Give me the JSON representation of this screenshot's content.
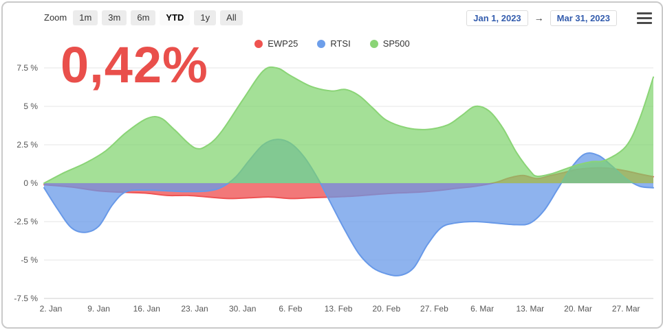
{
  "toolbar": {
    "zoom_label": "Zoom",
    "buttons": [
      {
        "label": "1m",
        "selected": false
      },
      {
        "label": "3m",
        "selected": false
      },
      {
        "label": "6m",
        "selected": false
      },
      {
        "label": "YTD",
        "selected": true
      },
      {
        "label": "1y",
        "selected": false
      },
      {
        "label": "All",
        "selected": false
      }
    ],
    "range_start": "Jan 1, 2023",
    "range_end": "Mar 31, 2023",
    "arrow": "→",
    "date_color": "#335cad"
  },
  "big_value": {
    "text": "0,42%",
    "color": "#e94f4b"
  },
  "chart_data": {
    "type": "area",
    "title": "",
    "threshold": 0,
    "grid": "horizontal",
    "legend_position": "top-center",
    "ylim": [
      -7.5,
      7.5
    ],
    "x_range_days": [
      0,
      89
    ],
    "x_unit": "days since Jan 1, 2023",
    "y_ticks": [
      {
        "value": 7.5,
        "label": "7.5 %"
      },
      {
        "value": 5,
        "label": "5 %"
      },
      {
        "value": 2.5,
        "label": "2.5 %"
      },
      {
        "value": 0,
        "label": "0 %"
      },
      {
        "value": -2.5,
        "label": "-2.5 %"
      },
      {
        "value": -5,
        "label": "-5 %"
      },
      {
        "value": -7.5,
        "label": "-7.5 %"
      }
    ],
    "x_ticks": [
      {
        "day": 1,
        "label": "2. Jan"
      },
      {
        "day": 8,
        "label": "9. Jan"
      },
      {
        "day": 15,
        "label": "16. Jan"
      },
      {
        "day": 22,
        "label": "23. Jan"
      },
      {
        "day": 29,
        "label": "30. Jan"
      },
      {
        "day": 36,
        "label": "6. Feb"
      },
      {
        "day": 43,
        "label": "13. Feb"
      },
      {
        "day": 50,
        "label": "20. Feb"
      },
      {
        "day": 57,
        "label": "27. Feb"
      },
      {
        "day": 64,
        "label": "6. Mar"
      },
      {
        "day": 71,
        "label": "13. Mar"
      },
      {
        "day": 78,
        "label": "20. Mar"
      },
      {
        "day": 85,
        "label": "27. Mar"
      }
    ],
    "legend": [
      {
        "label": "EWP25",
        "color": "#ef5350"
      },
      {
        "label": "RTSI",
        "color": "#6d9eea"
      },
      {
        "label": "SP500",
        "color": "#8ad476"
      }
    ],
    "series": [
      {
        "name": "EWP25",
        "color": "#ee5253",
        "fill": "rgba(238,82,83,0.78)",
        "points": [
          [
            0,
            -0.1
          ],
          [
            4,
            -0.25
          ],
          [
            8,
            -0.5
          ],
          [
            12,
            -0.6
          ],
          [
            15,
            -0.65
          ],
          [
            18,
            -0.8
          ],
          [
            21,
            -0.8
          ],
          [
            24,
            -0.9
          ],
          [
            27,
            -1.0
          ],
          [
            30,
            -0.95
          ],
          [
            33,
            -0.9
          ],
          [
            36,
            -1.0
          ],
          [
            39,
            -0.95
          ],
          [
            42,
            -0.9
          ],
          [
            45,
            -0.85
          ],
          [
            48,
            -0.75
          ],
          [
            51,
            -0.65
          ],
          [
            54,
            -0.6
          ],
          [
            57,
            -0.5
          ],
          [
            60,
            -0.35
          ],
          [
            63,
            -0.2
          ],
          [
            66,
            0.05
          ],
          [
            68,
            0.35
          ],
          [
            70,
            0.5
          ],
          [
            72,
            0.3
          ],
          [
            74,
            0.5
          ],
          [
            76,
            0.7
          ],
          [
            78,
            0.9
          ],
          [
            81,
            1.0
          ],
          [
            83,
            0.95
          ],
          [
            85,
            0.8
          ],
          [
            87,
            0.6
          ],
          [
            89,
            0.42
          ]
        ]
      },
      {
        "name": "RTSI",
        "color": "#6899e8",
        "fill": "rgba(104,153,232,0.75)",
        "points": [
          [
            0,
            -0.3
          ],
          [
            2,
            -1.7
          ],
          [
            4,
            -2.9
          ],
          [
            6,
            -3.2
          ],
          [
            8,
            -2.8
          ],
          [
            10,
            -1.4
          ],
          [
            12,
            -0.55
          ],
          [
            15,
            -0.45
          ],
          [
            18,
            -0.5
          ],
          [
            21,
            -0.55
          ],
          [
            24,
            -0.5
          ],
          [
            26,
            -0.25
          ],
          [
            28,
            0.4
          ],
          [
            30,
            1.5
          ],
          [
            32,
            2.5
          ],
          [
            34,
            2.85
          ],
          [
            36,
            2.6
          ],
          [
            38,
            1.7
          ],
          [
            40,
            0.3
          ],
          [
            42,
            -1.4
          ],
          [
            44,
            -3.1
          ],
          [
            46,
            -4.6
          ],
          [
            48,
            -5.5
          ],
          [
            50,
            -5.9
          ],
          [
            52,
            -6.0
          ],
          [
            54,
            -5.5
          ],
          [
            56,
            -4.0
          ],
          [
            58,
            -2.9
          ],
          [
            60,
            -2.6
          ],
          [
            63,
            -2.5
          ],
          [
            66,
            -2.6
          ],
          [
            69,
            -2.7
          ],
          [
            71,
            -2.6
          ],
          [
            73,
            -1.8
          ],
          [
            75,
            -0.4
          ],
          [
            77,
            1.0
          ],
          [
            79,
            1.9
          ],
          [
            81,
            1.8
          ],
          [
            83,
            1.1
          ],
          [
            85,
            0.3
          ],
          [
            87,
            -0.2
          ],
          [
            89,
            -0.3
          ]
        ]
      },
      {
        "name": "SP500",
        "color": "#8ad476",
        "fill": "rgba(126,211,107,0.7)",
        "points": [
          [
            0,
            0.0
          ],
          [
            3,
            0.7
          ],
          [
            6,
            1.3
          ],
          [
            9,
            2.1
          ],
          [
            12,
            3.3
          ],
          [
            15,
            4.2
          ],
          [
            17,
            4.25
          ],
          [
            19,
            3.5
          ],
          [
            22,
            2.3
          ],
          [
            24,
            2.5
          ],
          [
            26,
            3.4
          ],
          [
            29,
            5.4
          ],
          [
            32,
            7.3
          ],
          [
            34,
            7.5
          ],
          [
            36,
            7.0
          ],
          [
            39,
            6.3
          ],
          [
            42,
            6.0
          ],
          [
            44,
            6.1
          ],
          [
            46,
            5.7
          ],
          [
            48,
            4.9
          ],
          [
            50,
            4.1
          ],
          [
            53,
            3.6
          ],
          [
            56,
            3.5
          ],
          [
            59,
            3.8
          ],
          [
            61,
            4.4
          ],
          [
            63,
            5.0
          ],
          [
            65,
            4.7
          ],
          [
            67,
            3.6
          ],
          [
            69,
            2.0
          ],
          [
            71,
            0.8
          ],
          [
            72,
            0.45
          ],
          [
            74,
            0.6
          ],
          [
            76,
            0.9
          ],
          [
            78,
            1.2
          ],
          [
            80,
            1.4
          ],
          [
            82,
            1.5
          ],
          [
            85,
            2.4
          ],
          [
            87,
            4.2
          ],
          [
            89,
            6.9
          ]
        ]
      }
    ]
  }
}
